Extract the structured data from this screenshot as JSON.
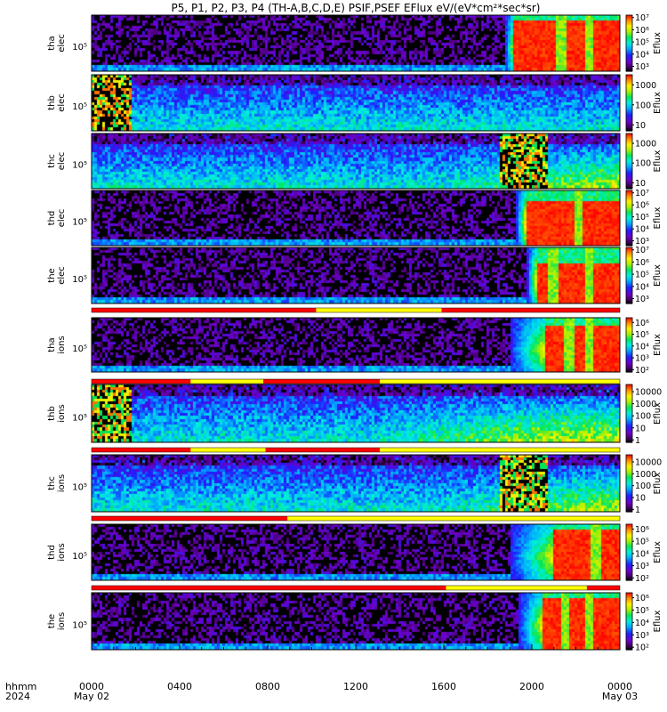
{
  "title": "P5, P1, P2, P3, P4 (TH-A,B,C,D,E) PSIF,PSEF EFlux eV/(eV*cm²*sec*sr)",
  "chart_data": {
    "type": "heatmap",
    "title": "P5, P1, P2, P3, P4 (TH-A,B,C,D,E) PSIF,PSEF EFlux eV/(eV*cm²*sec*sr)",
    "x_axis": {
      "label_line1": "hhmm",
      "label_line2": "2024",
      "range_hours": [
        0,
        24
      ],
      "tick_hours": [
        0,
        4,
        8,
        12,
        16,
        20,
        24
      ],
      "tick_labels": [
        "0000",
        "0400",
        "0800",
        "1200",
        "1600",
        "2000",
        "0000"
      ],
      "date_labels": [
        "May 02",
        "May 03"
      ]
    },
    "colorbar_label": "Eflux",
    "colormap": "rainbow (purple-blue-cyan-green-yellow-red)",
    "panels": [
      {
        "probe": "tha",
        "species": "elec",
        "ylabel": [
          "tha",
          "elec"
        ],
        "ytick": "10⁵",
        "colorbar_ticks": [
          "10³",
          "10⁴",
          "10⁵",
          "10⁶",
          "10⁷"
        ],
        "colorbar_log_range": [
          2.6,
          7.2
        ],
        "activity_onset_hour": 18.8,
        "sat_start_hour": 19.2,
        "saturation_gaps_hours": [
          21.3,
          22.6
        ],
        "sat_start_frac": 0.12
      },
      {
        "probe": "thb",
        "species": "elec",
        "ylabel": [
          "thb",
          "elec"
        ],
        "ytick": "10⁵",
        "colorbar_ticks": [
          "10",
          "100",
          "1000"
        ],
        "colorbar_log_range": [
          0.7,
          3.5
        ],
        "noisy_block_hours": [
          0,
          1.8
        ],
        "mode": "mid"
      },
      {
        "probe": "thc",
        "species": "elec",
        "ylabel": [
          "thc",
          "elec"
        ],
        "ytick": "10⁵",
        "colorbar_ticks": [
          "10",
          "100",
          "1000"
        ],
        "colorbar_log_range": [
          0.7,
          3.5
        ],
        "noisy_block_hours": [
          18.5,
          20.7
        ],
        "mode": "mid",
        "green_region_hours": [
          16,
          24
        ]
      },
      {
        "probe": "thd",
        "species": "elec",
        "ylabel": [
          "thd",
          "elec"
        ],
        "ytick": "10⁵",
        "colorbar_ticks": [
          "10³",
          "10⁴",
          "10⁵",
          "10⁶",
          "10⁷"
        ],
        "colorbar_log_range": [
          2.6,
          7.2
        ],
        "activity_onset_hour": 19.3,
        "sat_start_hour": 19.7,
        "saturation_gaps_hours": [
          22.1
        ],
        "sat_start_frac": 0.22
      },
      {
        "probe": "the",
        "species": "elec",
        "ylabel": [
          "the",
          "elec"
        ],
        "ytick": "10⁵",
        "colorbar_ticks": [
          "10³",
          "10⁴",
          "10⁵",
          "10⁶",
          "10⁷"
        ],
        "colorbar_log_range": [
          2.6,
          7.2
        ],
        "activity_onset_hour": 19.8,
        "sat_start_hour": 20.2,
        "saturation_gaps_hours": [
          21.0,
          22.6
        ],
        "sat_start_frac": 0.28
      },
      {
        "probe": "tha",
        "species": "ions",
        "ylabel": [
          "tha",
          "ions"
        ],
        "ytick": "10⁵",
        "colorbar_ticks": [
          "10²",
          "10³",
          "10⁴",
          "10⁵",
          "10⁶"
        ],
        "colorbar_log_range": [
          1.8,
          6.4
        ],
        "activity_onset_hour": 19.0,
        "sat_start_hour": 20.6,
        "saturation_gaps_hours": [
          21.7,
          22.6
        ],
        "sat_start_frac": 0.15
      },
      {
        "probe": "thb",
        "species": "ions",
        "ylabel": [
          "thb",
          "ions"
        ],
        "ytick": "10⁵",
        "colorbar_ticks": [
          "1",
          "10",
          "100",
          "1000",
          "10000"
        ],
        "colorbar_log_range": [
          -0.2,
          4.6
        ],
        "noisy_block_hours": [
          0,
          1.8
        ],
        "mode": "mid",
        "green_region_hours": [
          13,
          24
        ]
      },
      {
        "probe": "thc",
        "species": "ions",
        "ylabel": [
          "thc",
          "ions"
        ],
        "ytick": "10⁵",
        "colorbar_ticks": [
          "1",
          "10",
          "100",
          "1000",
          "10000"
        ],
        "colorbar_log_range": [
          -0.2,
          4.6
        ],
        "noisy_block_hours": [
          18.5,
          20.7
        ],
        "mode": "mid",
        "green_region_hours": [
          16,
          24
        ]
      },
      {
        "probe": "thd",
        "species": "ions",
        "ylabel": [
          "thd",
          "ions"
        ],
        "ytick": "10⁵",
        "colorbar_ticks": [
          "10²",
          "10³",
          "10⁴",
          "10⁵",
          "10⁶"
        ],
        "colorbar_log_range": [
          1.8,
          6.4
        ],
        "activity_onset_hour": 19.0,
        "sat_start_hour": 21.0,
        "saturation_gaps_hours": [
          22.9
        ],
        "sat_start_frac": 0.1
      },
      {
        "probe": "the",
        "species": "ions",
        "ylabel": [
          "the",
          "ions"
        ],
        "ytick": "10⁵",
        "colorbar_ticks": [
          "10²",
          "10³",
          "10⁴",
          "10⁵",
          "10⁶"
        ],
        "colorbar_log_range": [
          1.8,
          6.4
        ],
        "activity_onset_hour": 19.4,
        "sat_start_hour": 20.5,
        "saturation_gaps_hours": [
          21.5,
          22.6
        ],
        "sat_start_frac": 0.12
      }
    ],
    "mode_bars": [
      {
        "after_panel": 4,
        "segments": [
          {
            "from": 0,
            "to": 10.2,
            "color": "#ff0000"
          },
          {
            "from": 10.2,
            "to": 15.9,
            "color": "#ffff00"
          },
          {
            "from": 15.9,
            "to": 24,
            "color": "#ff0000"
          }
        ]
      },
      {
        "after_panel": 5,
        "segments": [
          {
            "from": 0,
            "to": 4.5,
            "color": "#ff0000"
          },
          {
            "from": 4.5,
            "to": 7.8,
            "color": "#ffff00"
          },
          {
            "from": 7.8,
            "to": 13.1,
            "color": "#ff0000"
          },
          {
            "from": 13.1,
            "to": 24,
            "color": "#ffff00"
          }
        ]
      },
      {
        "after_panel": 6,
        "segments": [
          {
            "from": 0,
            "to": 4.5,
            "color": "#ff0000"
          },
          {
            "from": 4.5,
            "to": 7.9,
            "color": "#ffff00"
          },
          {
            "from": 7.9,
            "to": 13.1,
            "color": "#ff0000"
          },
          {
            "from": 13.1,
            "to": 24,
            "color": "#ffff00"
          }
        ]
      },
      {
        "after_panel": 7,
        "segments": [
          {
            "from": 0,
            "to": 8.9,
            "color": "#ff0000"
          },
          {
            "from": 8.9,
            "to": 24,
            "color": "#ffff00"
          }
        ]
      },
      {
        "after_panel": 8,
        "segments": [
          {
            "from": 0,
            "to": 16.1,
            "color": "#ff0000"
          },
          {
            "from": 16.1,
            "to": 22.5,
            "color": "#ffff00"
          },
          {
            "from": 22.5,
            "to": 24,
            "color": "#ff0000"
          }
        ]
      }
    ]
  }
}
